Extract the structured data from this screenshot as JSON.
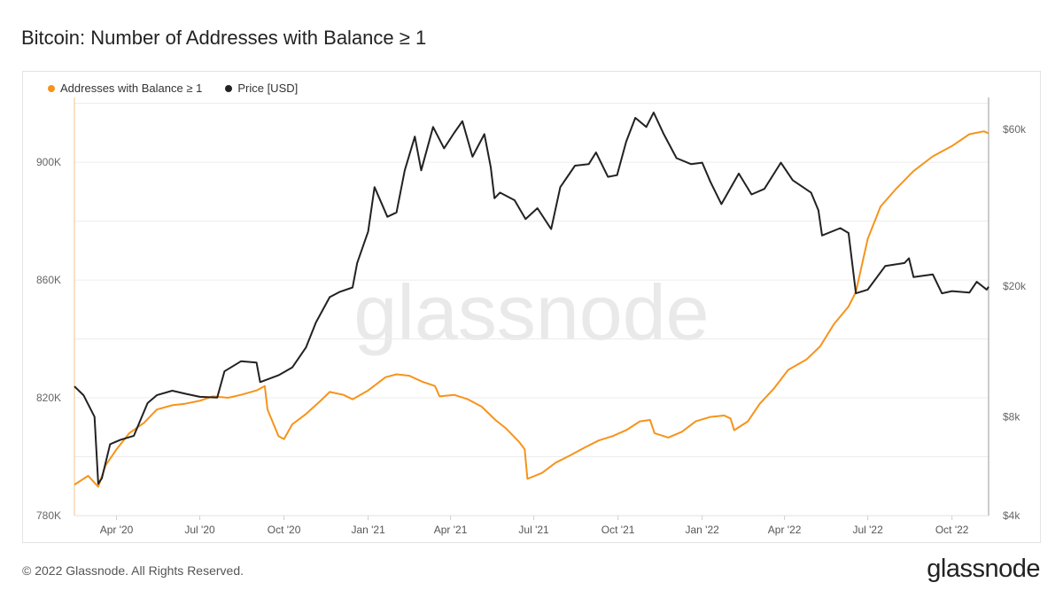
{
  "title": "Bitcoin: Number of Addresses with Balance ≥ 1",
  "watermark": "glassnode",
  "footer": {
    "copyright": "© 2022 Glassnode. All Rights Reserved.",
    "logo": "glassnode"
  },
  "colors": {
    "addresses": "#f7931a",
    "price": "#222222",
    "grid": "#ececec",
    "axis_text": "#666666",
    "watermark": "#e9e9e9"
  },
  "chart_data": {
    "type": "line",
    "title": "Bitcoin: Number of Addresses with Balance ≥ 1",
    "legend_placement": "top-left",
    "grid": true,
    "x_range": [
      "2020-02-15",
      "2022-11-10"
    ],
    "x_ticks": [
      {
        "date": "2020-04-01",
        "label": "Apr '20"
      },
      {
        "date": "2020-07-01",
        "label": "Jul '20"
      },
      {
        "date": "2020-10-01",
        "label": "Oct '20"
      },
      {
        "date": "2021-01-01",
        "label": "Jan '21"
      },
      {
        "date": "2021-04-01",
        "label": "Apr '21"
      },
      {
        "date": "2021-07-01",
        "label": "Jul '21"
      },
      {
        "date": "2021-10-01",
        "label": "Oct '21"
      },
      {
        "date": "2022-01-01",
        "label": "Jan '22"
      },
      {
        "date": "2022-04-01",
        "label": "Apr '22"
      },
      {
        "date": "2022-07-01",
        "label": "Jul '22"
      },
      {
        "date": "2022-10-01",
        "label": "Oct '22"
      }
    ],
    "y_left": {
      "ylim": [
        780000,
        922000
      ],
      "ticks": [
        {
          "value": 780000,
          "label": "780K"
        },
        {
          "value": 820000,
          "label": "820K"
        },
        {
          "value": 860000,
          "label": "860K"
        },
        {
          "value": 900000,
          "label": "900K"
        }
      ]
    },
    "y_right": {
      "scale": "log",
      "ylim": [
        4000,
        75000
      ],
      "ticks": [
        {
          "value": 4000,
          "label": "$4k"
        },
        {
          "value": 8000,
          "label": "$8k"
        },
        {
          "value": 20000,
          "label": "$20k"
        },
        {
          "value": 60000,
          "label": "$60k"
        }
      ]
    },
    "series": [
      {
        "name": "Addresses with Balance ≥ 1",
        "axis": "left",
        "color": "#f7931a",
        "points": [
          [
            "2020-02-15",
            790500
          ],
          [
            "2020-03-01",
            793500
          ],
          [
            "2020-03-12",
            789800
          ],
          [
            "2020-03-20",
            797000
          ],
          [
            "2020-04-01",
            802500
          ],
          [
            "2020-04-15",
            808000
          ],
          [
            "2020-05-01",
            811500
          ],
          [
            "2020-05-15",
            816000
          ],
          [
            "2020-06-01",
            817500
          ],
          [
            "2020-06-15",
            818000
          ],
          [
            "2020-07-01",
            819000
          ],
          [
            "2020-07-15",
            820500
          ],
          [
            "2020-08-01",
            820000
          ],
          [
            "2020-08-15",
            821000
          ],
          [
            "2020-09-01",
            822500
          ],
          [
            "2020-09-10",
            824000
          ],
          [
            "2020-09-13",
            816000
          ],
          [
            "2020-09-25",
            807000
          ],
          [
            "2020-10-01",
            806000
          ],
          [
            "2020-10-10",
            811000
          ],
          [
            "2020-10-25",
            814500
          ],
          [
            "2020-11-10",
            819000
          ],
          [
            "2020-11-20",
            822000
          ],
          [
            "2020-12-05",
            821000
          ],
          [
            "2020-12-15",
            819500
          ],
          [
            "2021-01-01",
            822500
          ],
          [
            "2021-01-20",
            827000
          ],
          [
            "2021-02-01",
            828000
          ],
          [
            "2021-02-15",
            827500
          ],
          [
            "2021-03-01",
            825500
          ],
          [
            "2021-03-15",
            824000
          ],
          [
            "2021-03-20",
            820500
          ],
          [
            "2021-04-05",
            821000
          ],
          [
            "2021-04-20",
            819500
          ],
          [
            "2021-05-05",
            817000
          ],
          [
            "2021-05-20",
            812500
          ],
          [
            "2021-06-01",
            809500
          ],
          [
            "2021-06-15",
            805000
          ],
          [
            "2021-06-21",
            802500
          ],
          [
            "2021-06-24",
            792500
          ],
          [
            "2021-07-10",
            794500
          ],
          [
            "2021-07-25",
            798000
          ],
          [
            "2021-08-10",
            800500
          ],
          [
            "2021-08-25",
            803000
          ],
          [
            "2021-09-10",
            805500
          ],
          [
            "2021-09-25",
            807000
          ],
          [
            "2021-10-10",
            809000
          ],
          [
            "2021-10-25",
            812000
          ],
          [
            "2021-11-05",
            812500
          ],
          [
            "2021-11-10",
            808000
          ],
          [
            "2021-11-25",
            806500
          ],
          [
            "2021-12-10",
            808500
          ],
          [
            "2021-12-25",
            812000
          ],
          [
            "2022-01-10",
            813500
          ],
          [
            "2022-01-25",
            814000
          ],
          [
            "2022-02-01",
            813000
          ],
          [
            "2022-02-05",
            809000
          ],
          [
            "2022-02-20",
            812000
          ],
          [
            "2022-03-05",
            818000
          ],
          [
            "2022-03-20",
            823000
          ],
          [
            "2022-04-05",
            829500
          ],
          [
            "2022-04-25",
            833000
          ],
          [
            "2022-05-10",
            837500
          ],
          [
            "2022-05-25",
            845000
          ],
          [
            "2022-06-10",
            851000
          ],
          [
            "2022-06-18",
            856000
          ],
          [
            "2022-07-01",
            874000
          ],
          [
            "2022-07-15",
            885000
          ],
          [
            "2022-08-01",
            891000
          ],
          [
            "2022-08-20",
            897000
          ],
          [
            "2022-09-10",
            902000
          ],
          [
            "2022-10-01",
            905500
          ],
          [
            "2022-10-20",
            909500
          ],
          [
            "2022-11-05",
            910500
          ],
          [
            "2022-11-10",
            909800
          ]
        ]
      },
      {
        "name": "Price [USD]",
        "axis": "right",
        "color": "#222222",
        "points": [
          [
            "2020-02-15",
            9900
          ],
          [
            "2020-02-25",
            9300
          ],
          [
            "2020-03-08",
            8000
          ],
          [
            "2020-03-12",
            5000
          ],
          [
            "2020-03-16",
            5200
          ],
          [
            "2020-03-25",
            6600
          ],
          [
            "2020-04-05",
            6800
          ],
          [
            "2020-04-20",
            7000
          ],
          [
            "2020-05-05",
            8800
          ],
          [
            "2020-05-15",
            9300
          ],
          [
            "2020-06-01",
            9600
          ],
          [
            "2020-06-15",
            9400
          ],
          [
            "2020-07-01",
            9200
          ],
          [
            "2020-07-20",
            9150
          ],
          [
            "2020-07-28",
            11000
          ],
          [
            "2020-08-15",
            11800
          ],
          [
            "2020-09-01",
            11700
          ],
          [
            "2020-09-05",
            10200
          ],
          [
            "2020-09-25",
            10700
          ],
          [
            "2020-10-10",
            11300
          ],
          [
            "2020-10-25",
            13000
          ],
          [
            "2020-11-05",
            15500
          ],
          [
            "2020-11-20",
            18500
          ],
          [
            "2020-12-01",
            19200
          ],
          [
            "2020-12-15",
            19800
          ],
          [
            "2020-12-20",
            23500
          ],
          [
            "2021-01-01",
            29300
          ],
          [
            "2021-01-08",
            40000
          ],
          [
            "2021-01-22",
            32500
          ],
          [
            "2021-02-01",
            33500
          ],
          [
            "2021-02-10",
            45000
          ],
          [
            "2021-02-21",
            57000
          ],
          [
            "2021-02-28",
            45000
          ],
          [
            "2021-03-13",
            61000
          ],
          [
            "2021-03-25",
            52500
          ],
          [
            "2021-04-05",
            58500
          ],
          [
            "2021-04-14",
            63500
          ],
          [
            "2021-04-25",
            49500
          ],
          [
            "2021-05-08",
            58000
          ],
          [
            "2021-05-15",
            46000
          ],
          [
            "2021-05-19",
            37000
          ],
          [
            "2021-05-25",
            38500
          ],
          [
            "2021-06-10",
            36500
          ],
          [
            "2021-06-22",
            32000
          ],
          [
            "2021-07-05",
            34500
          ],
          [
            "2021-07-20",
            29800
          ],
          [
            "2021-07-30",
            40000
          ],
          [
            "2021-08-15",
            46500
          ],
          [
            "2021-08-30",
            47000
          ],
          [
            "2021-09-07",
            51000
          ],
          [
            "2021-09-20",
            43000
          ],
          [
            "2021-09-30",
            43500
          ],
          [
            "2021-10-10",
            55000
          ],
          [
            "2021-10-20",
            65000
          ],
          [
            "2021-11-01",
            61000
          ],
          [
            "2021-11-09",
            67500
          ],
          [
            "2021-11-20",
            58000
          ],
          [
            "2021-12-04",
            49000
          ],
          [
            "2021-12-20",
            47000
          ],
          [
            "2022-01-01",
            47500
          ],
          [
            "2022-01-10",
            41500
          ],
          [
            "2022-01-22",
            35500
          ],
          [
            "2022-02-10",
            44000
          ],
          [
            "2022-02-24",
            38000
          ],
          [
            "2022-03-10",
            39500
          ],
          [
            "2022-03-28",
            47500
          ],
          [
            "2022-04-10",
            42000
          ],
          [
            "2022-04-30",
            38500
          ],
          [
            "2022-05-08",
            34000
          ],
          [
            "2022-05-12",
            28500
          ],
          [
            "2022-06-01",
            30000
          ],
          [
            "2022-06-10",
            29000
          ],
          [
            "2022-06-18",
            19000
          ],
          [
            "2022-07-01",
            19500
          ],
          [
            "2022-07-20",
            23000
          ],
          [
            "2022-08-10",
            23500
          ],
          [
            "2022-08-15",
            24300
          ],
          [
            "2022-08-20",
            21300
          ],
          [
            "2022-09-10",
            21700
          ],
          [
            "2022-09-20",
            19000
          ],
          [
            "2022-10-01",
            19300
          ],
          [
            "2022-10-20",
            19100
          ],
          [
            "2022-10-28",
            20600
          ],
          [
            "2022-11-08",
            19500
          ],
          [
            "2022-11-10",
            19900
          ]
        ]
      }
    ]
  }
}
